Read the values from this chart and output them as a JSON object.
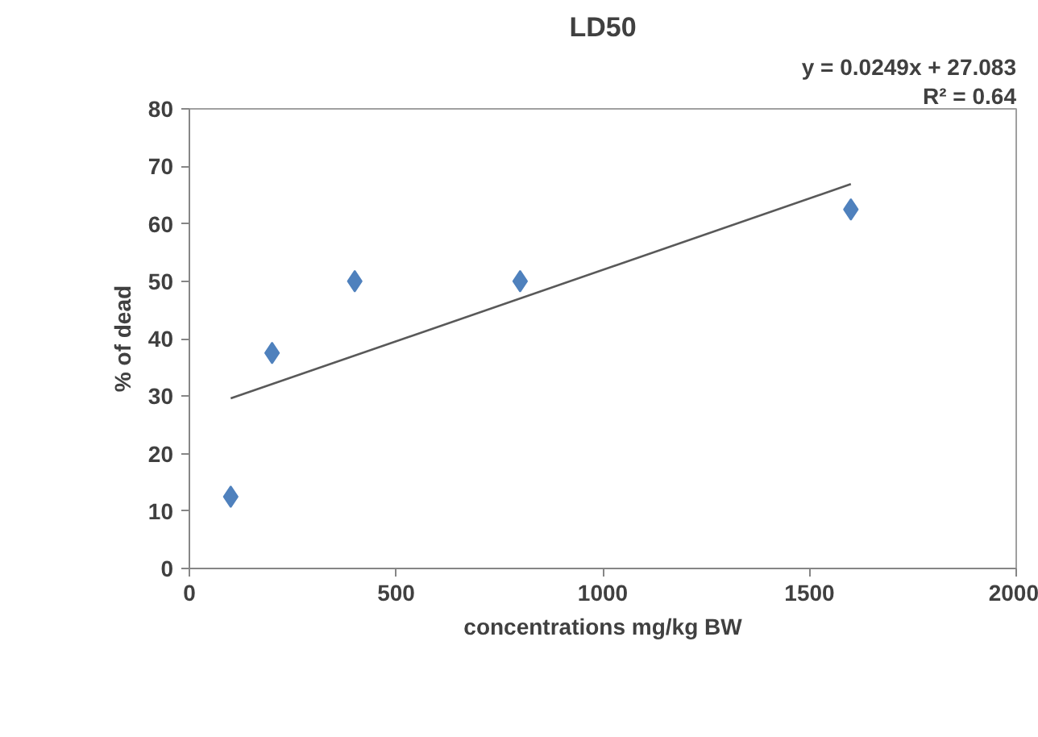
{
  "chart_data": {
    "type": "scatter",
    "title": "LD50",
    "xlabel": "concentrations mg/kg BW",
    "ylabel": "% of dead",
    "x": [
      100,
      200,
      400,
      800,
      1600
    ],
    "series": [
      {
        "color": "#4f81bd",
        "marker": "diamond",
        "values": [
          12.5,
          37.5,
          50,
          50,
          62.5
        ]
      },
      {
        "type": "line",
        "marker": "none",
        "color": "#595959",
        "x": [
          100,
          1600
        ],
        "values": [
          29.6,
          66.9
        ]
      }
    ],
    "grid": false,
    "xlim": [
      0,
      2000
    ],
    "ylim": [
      0,
      80
    ],
    "xticks": [
      0,
      500,
      1000,
      1500,
      2000
    ],
    "yticks": [
      0,
      10,
      20,
      30,
      40,
      50,
      60,
      70,
      80
    ],
    "annotations": [
      "y = 0.0249x + 27.083",
      "R² = 0.64"
    ]
  }
}
